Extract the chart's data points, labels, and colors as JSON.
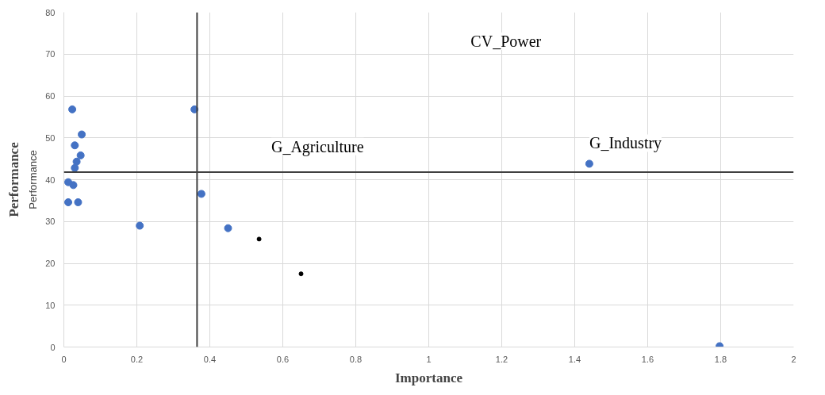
{
  "chart_data": {
    "type": "scatter",
    "xlabel": "Importance",
    "ylabel": "Performance",
    "xlim": [
      0,
      2
    ],
    "ylim": [
      0,
      80
    ],
    "xticks": [
      0,
      0.2,
      0.4,
      0.6,
      0.8,
      {
        "value": 1,
        "label": "1"
      },
      1.2,
      1.4,
      1.6,
      1.8,
      {
        "value": 2,
        "label": "2"
      }
    ],
    "yticks": [
      0,
      10,
      20,
      30,
      40,
      50,
      60,
      70,
      80
    ],
    "grid": true,
    "marker": "circle",
    "series": [
      {
        "color": "#4472c4",
        "x": [
          0.023,
          0.049,
          0.03,
          0.046,
          0.035,
          0.03,
          0.012,
          0.026,
          0.012,
          0.039,
          0.208,
          0.358,
          0.377,
          0.45,
          1.44,
          1.797
        ],
        "values": [
          56.8,
          50.8,
          48.2,
          45.8,
          44.3,
          42.8,
          39.4,
          38.7,
          34.6,
          34.6,
          29,
          56.8,
          36.6,
          28.4,
          43.8,
          0.2
        ]
      },
      {
        "color": "#000000",
        "x": [
          0.535,
          0.65
        ],
        "values": [
          25.8,
          17.5
        ]
      }
    ],
    "ref_lines": [
      {
        "axis": "x",
        "value": 0.365,
        "color": "#404040"
      },
      {
        "axis": "y",
        "value": 41.8,
        "color": "#404040"
      }
    ],
    "annotations": [
      "CV_Power",
      "G_Agriculture",
      "G_Industry",
      "Performance"
    ]
  }
}
